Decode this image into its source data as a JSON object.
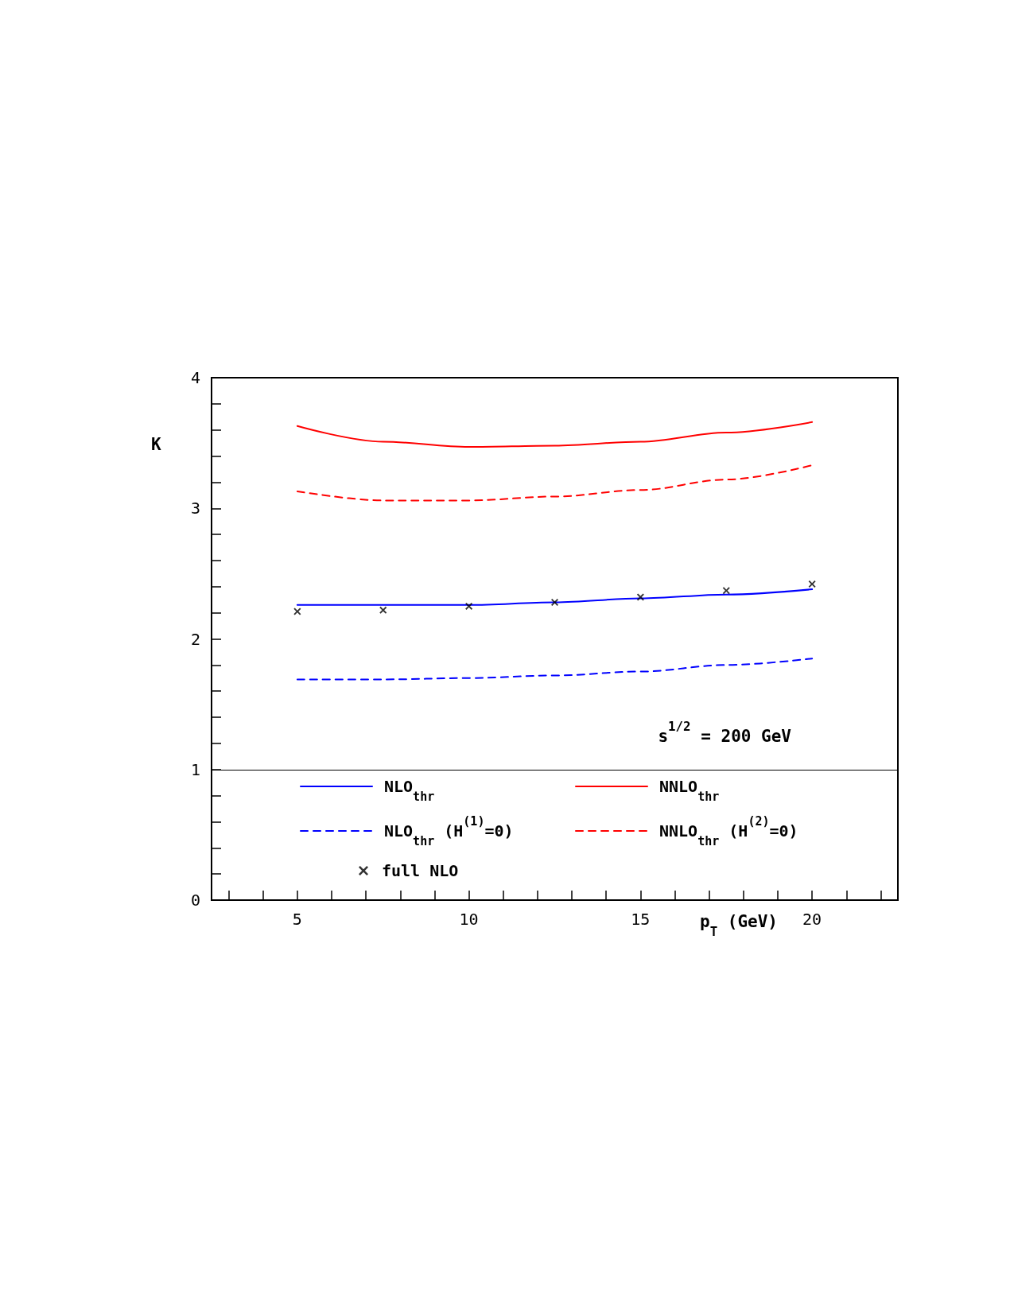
{
  "chart_data": {
    "type": "line",
    "xlabel": "p$_{T}$ (GeV)",
    "ylabel": "K",
    "annotations": [
      "s$^{1/2}$ = 200 GeV"
    ],
    "x": [
      5,
      7.5,
      10,
      12.5,
      15,
      17.5,
      20
    ],
    "series": [
      {
        "name": "NLO$_{thr}$",
        "color": "#0000ff",
        "line_style": "solid",
        "marker": "none",
        "values": [
          2.26,
          2.26,
          2.26,
          2.28,
          2.31,
          2.34,
          2.38
        ]
      },
      {
        "name": "NNLO$_{thr}$",
        "color": "#ff0000",
        "line_style": "solid",
        "marker": "none",
        "values": [
          3.63,
          3.51,
          3.47,
          3.48,
          3.51,
          3.58,
          3.66
        ]
      },
      {
        "name": "NLO$_{thr}$ (H$^{(1)}$=0)",
        "color": "#0000ff",
        "line_style": "dashed",
        "marker": "none",
        "values": [
          1.69,
          1.69,
          1.7,
          1.72,
          1.75,
          1.8,
          1.85
        ]
      },
      {
        "name": "NNLO$_{thr}$ (H$^{(2)}$=0)",
        "color": "#ff0000",
        "line_style": "dashed",
        "marker": "none",
        "values": [
          3.13,
          3.06,
          3.06,
          3.09,
          3.14,
          3.22,
          3.33
        ]
      },
      {
        "name": "full NLO",
        "type": "scatter",
        "color": "#000000",
        "marker": "cross",
        "values": [
          2.21,
          2.22,
          2.25,
          2.28,
          2.32,
          2.37,
          2.42
        ]
      }
    ],
    "xlim": [
      2.5,
      22.5
    ],
    "xticks": [
      {
        "value": 3,
        "label": null
      },
      {
        "value": 4,
        "label": null
      },
      5,
      {
        "value": 6,
        "label": null
      },
      {
        "value": 7,
        "label": null
      },
      {
        "value": 8,
        "label": null
      },
      {
        "value": 9,
        "label": null
      },
      10,
      {
        "value": 11,
        "label": null
      },
      {
        "value": 12,
        "label": null
      },
      {
        "value": 13,
        "label": null
      },
      {
        "value": 14,
        "label": null
      },
      15,
      {
        "value": 16,
        "label": null
      },
      {
        "value": 17,
        "label": null
      },
      {
        "value": 18,
        "label": null
      },
      {
        "value": 19,
        "label": null
      },
      20,
      {
        "value": 21,
        "label": null
      },
      {
        "value": 22,
        "label": null
      }
    ],
    "ylim": [
      0,
      4
    ],
    "yticks": [
      0,
      {
        "value": 0.2,
        "label": null
      },
      {
        "value": 0.4,
        "label": null
      },
      {
        "value": 0.6,
        "label": null
      },
      {
        "value": 0.8,
        "label": null
      },
      1,
      {
        "value": 1.2,
        "label": null
      },
      {
        "value": 1.4,
        "label": null
      },
      {
        "value": 1.6,
        "label": null
      },
      {
        "value": 1.8,
        "label": null
      },
      2,
      {
        "value": 2.2,
        "label": null
      },
      {
        "value": 2.4,
        "label": null
      },
      {
        "value": 2.6,
        "label": null
      },
      {
        "value": 2.8,
        "label": null
      },
      3,
      {
        "value": 3.2,
        "label": null
      },
      {
        "value": 3.4,
        "label": null
      },
      {
        "value": 3.6,
        "label": null
      },
      {
        "value": 3.8,
        "label": null
      },
      4
    ],
    "ref_lines": [
      {
        "axis": "y",
        "value": 1,
        "color": "#000000",
        "line_style": "solid"
      }
    ],
    "grid": false,
    "legend": "bottom"
  }
}
